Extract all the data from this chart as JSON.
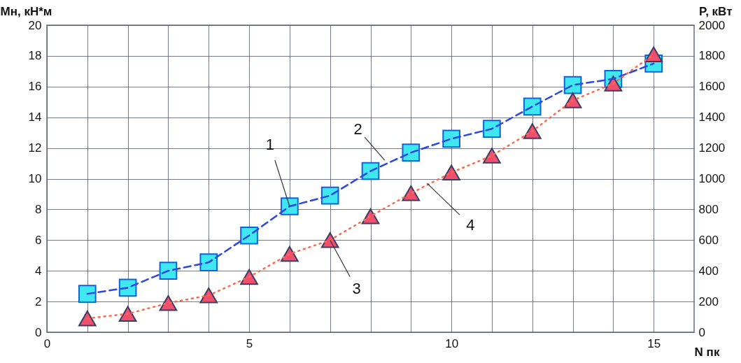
{
  "chart_data": {
    "type": "line",
    "ylabel": "Мн, кН*м",
    "y2label": "P, кВт",
    "xlabel": "N пк",
    "x": [
      1,
      2,
      3,
      4,
      5,
      6,
      7,
      8,
      9,
      10,
      11,
      12,
      13,
      14,
      15
    ],
    "series": [
      {
        "color": "#3fe8f0",
        "marker": "square",
        "line_style": "dashed",
        "values": [
          2.5,
          2.9,
          4.0,
          4.55,
          6.3,
          8.2,
          8.9,
          10.5,
          11.7,
          12.6,
          13.25,
          14.7,
          16.1,
          16.5,
          17.5
        ]
      },
      {
        "color": "#f0506e",
        "marker": "triangle",
        "line_style": "dotted",
        "axis": "y2",
        "values": [
          90,
          120,
          190,
          240,
          360,
          510,
          600,
          755,
          905,
          1040,
          1150,
          1310,
          1510,
          1620,
          1810
        ]
      }
    ],
    "xlim": [
      0,
      16
    ],
    "xticks": [
      0,
      {
        "value": 1,
        "label": null
      },
      {
        "value": 2,
        "label": null
      },
      {
        "value": 3,
        "label": null
      },
      {
        "value": 4,
        "label": null
      },
      5,
      {
        "value": 6,
        "label": null
      },
      {
        "value": 7,
        "label": null
      },
      {
        "value": 8,
        "label": null
      },
      {
        "value": 9,
        "label": null
      },
      10,
      {
        "value": 11,
        "label": null
      },
      {
        "value": 12,
        "label": null
      },
      {
        "value": 13,
        "label": null
      },
      {
        "value": 14,
        "label": null
      },
      15
    ],
    "ylim": [
      0,
      20
    ],
    "yticks": [
      0,
      2,
      4,
      6,
      8,
      10,
      12,
      14,
      16,
      18,
      20
    ],
    "y2lim": [
      0,
      2000
    ],
    "y2ticks": [
      0,
      200,
      400,
      600,
      800,
      1000,
      1200,
      1400,
      1600,
      1800,
      2000
    ],
    "grid": true,
    "annotations": [
      {
        "text": "1",
        "x": 6,
        "y": 8.2
      },
      {
        "text": "2",
        "x": 8.35,
        "y": 11.2
      },
      {
        "text": "3",
        "x": 7,
        "y": 6.0
      },
      {
        "text": "4",
        "x": 9.4,
        "y": 9.7
      }
    ]
  }
}
